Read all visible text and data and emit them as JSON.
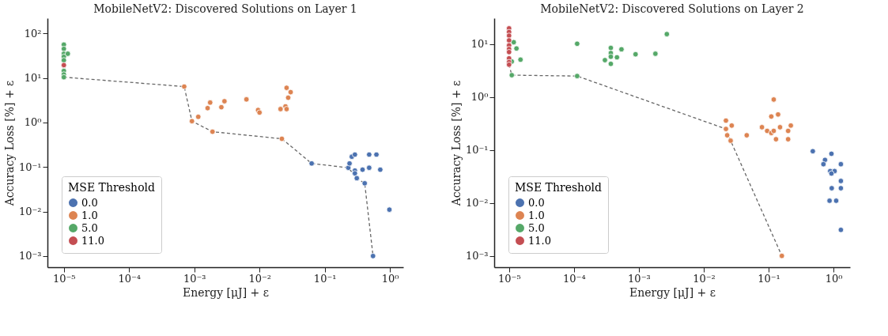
{
  "chart_data": [
    {
      "type": "scatter",
      "title": "MobileNetV2: Discovered Solutions on Layer 1",
      "xlabel": "Energy [μJ] + ε",
      "ylabel": "Accuracy Loss [%] + ε",
      "legend_title": "MSE Threshold",
      "legend": "bottom left",
      "log": "xy",
      "grid": false,
      "marker": "circle",
      "xlim": [
        5.6e-06,
        1.6
      ],
      "ylim": [
        0.00056,
        220
      ],
      "xticks": [
        {
          "value": 1e-05,
          "label": "10⁻⁵"
        },
        {
          "value": 0.0001,
          "label": "10⁻⁴"
        },
        {
          "value": 0.001,
          "label": "10⁻³"
        },
        {
          "value": 0.01,
          "label": "10⁻²"
        },
        {
          "value": 0.1,
          "label": "10⁻¹"
        },
        {
          "value": 1,
          "label": "10⁰"
        }
      ],
      "yticks": [
        {
          "value": 0.001,
          "label": "10⁻³"
        },
        {
          "value": 0.01,
          "label": "10⁻²"
        },
        {
          "value": 0.1,
          "label": "10⁻¹"
        },
        {
          "value": 1,
          "label": "10⁰"
        },
        {
          "value": 10,
          "label": "10¹"
        },
        {
          "value": 100,
          "label": "10²"
        }
      ],
      "series": [
        {
          "name": "0.0",
          "color": "#4c72b0",
          "x": [
            0.063,
            0.23,
            0.24,
            0.26,
            0.29,
            0.29,
            0.29,
            0.31,
            0.38,
            0.41,
            0.48,
            0.48,
            0.62,
            0.71,
            0.98,
            0.55
          ],
          "values": [
            0.12,
            0.096,
            0.12,
            0.17,
            0.19,
            0.083,
            0.072,
            0.056,
            0.087,
            0.043,
            0.19,
            0.096,
            0.19,
            0.087,
            0.011,
            0.001
          ]
        },
        {
          "name": "1.0",
          "color": "#dd8452",
          "x": [
            0.0007,
            0.00092,
            0.00115,
            0.0016,
            0.00175,
            0.0019,
            0.0026,
            0.0029,
            0.0063,
            0.0095,
            0.01,
            0.026,
            0.03,
            0.0275,
            0.025,
            0.021,
            0.026,
            0.022
          ],
          "values": [
            6.4,
            1.07,
            1.34,
            2.1,
            2.8,
            0.62,
            2.2,
            3.0,
            3.3,
            1.9,
            1.67,
            6.0,
            4.8,
            3.6,
            2.3,
            2.0,
            2.0,
            0.43
          ]
        },
        {
          "name": "5.0",
          "color": "#55a868",
          "x": [
            1e-05,
            1e-05,
            1e-05,
            1e-05,
            1e-05,
            1e-05,
            1e-05,
            1e-05,
            1.15e-05
          ],
          "values": [
            56,
            45,
            35,
            30,
            25,
            14.4,
            12,
            10.4,
            35
          ]
        },
        {
          "name": "11.0",
          "color": "#c44e52",
          "x": [
            1e-05
          ],
          "values": [
            19.4
          ]
        },
        {
          "type": "line",
          "color": "#666666",
          "line_style": "dashed",
          "marker": "none",
          "x": [
            1e-05,
            0.0007,
            0.00092,
            0.0019,
            0.022,
            0.063,
            0.23,
            0.31,
            0.41,
            0.55
          ],
          "values": [
            10.4,
            6.4,
            1.07,
            0.62,
            0.43,
            0.12,
            0.096,
            0.056,
            0.043,
            0.001
          ]
        }
      ]
    },
    {
      "type": "scatter",
      "title": "MobileNetV2: Discovered Solutions on Layer 2",
      "xlabel": "Energy [μJ] + ε",
      "ylabel": "Accuracy Loss [%] + ε",
      "legend_title": "MSE Threshold",
      "legend": "bottom left",
      "log": "xy",
      "grid": false,
      "marker": "circle",
      "xlim": [
        5.9e-06,
        1.8
      ],
      "ylim": [
        0.00061,
        31
      ],
      "xticks": [
        {
          "value": 1e-05,
          "label": "10⁻⁵"
        },
        {
          "value": 0.0001,
          "label": "10⁻⁴"
        },
        {
          "value": 0.001,
          "label": "10⁻³"
        },
        {
          "value": 0.01,
          "label": "10⁻²"
        },
        {
          "value": 0.1,
          "label": "10⁻¹"
        },
        {
          "value": 1,
          "label": "10⁰"
        }
      ],
      "yticks": [
        {
          "value": 0.001,
          "label": "10⁻³"
        },
        {
          "value": 0.01,
          "label": "10⁻²"
        },
        {
          "value": 0.1,
          "label": "10⁻¹"
        },
        {
          "value": 1,
          "label": "10⁰"
        },
        {
          "value": 10,
          "label": "10¹"
        }
      ],
      "series": [
        {
          "name": "0.0",
          "color": "#4c72b0",
          "x": [
            0.48,
            0.93,
            0.74,
            0.7,
            1.3,
            0.89,
            1.04,
            0.93,
            1.3,
            0.94,
            1.3,
            0.87,
            1.1,
            1.3
          ],
          "values": [
            0.095,
            0.085,
            0.065,
            0.054,
            0.054,
            0.04,
            0.04,
            0.036,
            0.026,
            0.019,
            0.019,
            0.011,
            0.011,
            0.0031
          ]
        },
        {
          "name": "1.0",
          "color": "#dd8452",
          "x": [
            0.022,
            0.027,
            0.022,
            0.023,
            0.026,
            0.046,
            0.079,
            0.095,
            0.11,
            0.14,
            0.12,
            0.11,
            0.12,
            0.15,
            0.13,
            0.2,
            0.22,
            0.2,
            0.16
          ],
          "values": [
            0.36,
            0.29,
            0.25,
            0.19,
            0.15,
            0.19,
            0.27,
            0.23,
            0.43,
            0.47,
            0.9,
            0.21,
            0.23,
            0.27,
            0.16,
            0.23,
            0.29,
            0.16,
            0.001
          ]
        },
        {
          "name": "5.0",
          "color": "#55a868",
          "x": [
            1.18e-05,
            1.3e-05,
            1.1e-05,
            1.5e-05,
            1.1e-05,
            0.000112,
            0.000112,
            0.0003,
            0.00037,
            0.00037,
            0.00037,
            0.00037,
            0.00046,
            0.00054,
            0.00089,
            0.0018,
            0.0027
          ],
          "values": [
            10.9,
            8.3,
            4.7,
            5.1,
            2.6,
            10.2,
            2.5,
            5.0,
            8.5,
            6.8,
            5.8,
            4.25,
            5.65,
            8.0,
            6.45,
            6.6,
            15.5
          ]
        },
        {
          "name": "11.0",
          "color": "#c44e52",
          "x": [
            1e-05,
            1e-05,
            1e-05,
            1e-05,
            1e-05,
            1e-05,
            1e-05,
            1e-05,
            1e-05,
            1e-05
          ],
          "values": [
            19.9,
            17,
            14.5,
            11.8,
            9.5,
            8.1,
            7.1,
            5.4,
            4.6,
            4.1
          ]
        },
        {
          "type": "line",
          "color": "#666666",
          "line_style": "dashed",
          "marker": "none",
          "x": [
            1e-05,
            1.1e-05,
            0.000112,
            0.022,
            0.026,
            0.16
          ],
          "values": [
            4.1,
            2.6,
            2.5,
            0.25,
            0.15,
            0.001
          ]
        }
      ]
    }
  ]
}
